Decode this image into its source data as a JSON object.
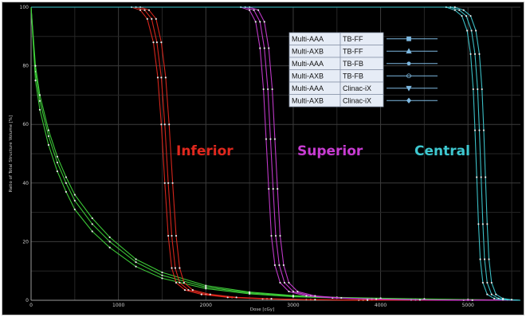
{
  "chart_data": {
    "type": "line",
    "title": "",
    "xlabel": "Dose [cGy]",
    "ylabel": "Ratio of Total Structure Volume [%]",
    "xlim": [
      0,
      5600
    ],
    "ylim": [
      0,
      100
    ],
    "x_ticks": [
      "0",
      "1000",
      "2000",
      "3000",
      "4000",
      "5000"
    ],
    "y_ticks": [
      "0",
      "20",
      "40",
      "60",
      "80",
      "100"
    ],
    "grid": true,
    "regions": [
      {
        "label": "Inferior",
        "color": "#e0281e"
      },
      {
        "label": "Superior",
        "color": "#c83cd2"
      },
      {
        "label": "Central",
        "color": "#3ec8d0"
      }
    ],
    "legend": {
      "placement": "top-right",
      "entries": [
        {
          "algorithm": "Multi-AAA",
          "beam": "TB-FF",
          "marker": "square"
        },
        {
          "algorithm": "Multi-AXB",
          "beam": "TB-FF",
          "marker": "triangle"
        },
        {
          "algorithm": "Multi-AAA",
          "beam": "TB-FB",
          "marker": "dot"
        },
        {
          "algorithm": "Multi-AXB",
          "beam": "TB-FB",
          "marker": "circle"
        },
        {
          "algorithm": "Multi-AAA",
          "beam": "Clinac-iX",
          "marker": "triangle-down"
        },
        {
          "algorithm": "Multi-AXB",
          "beam": "Clinac-iX",
          "marker": "diamond"
        }
      ]
    },
    "curve_groups": [
      {
        "color": "#3fd23a",
        "series": [
          {
            "x": [
              0,
              50,
              100,
              200,
              300,
              400,
              500,
              700,
              900,
              1200,
              1500,
              2000,
              2500,
              3000,
              3500,
              4000,
              4500,
              5000,
              5600
            ],
            "y": [
              100,
              78,
              68,
              56,
              47,
              40,
              34,
              26,
              20,
              13,
              8.5,
              4.5,
              2.5,
              1.4,
              0.9,
              0.6,
              0.4,
              0.2,
              0
            ]
          },
          {
            "x": [
              0,
              50,
              100,
              200,
              300,
              400,
              500,
              700,
              900,
              1200,
              1500,
              2000,
              2500,
              3000,
              3500,
              4000,
              4500,
              5000,
              5600
            ],
            "y": [
              100,
              75,
              65,
              53,
              44,
              37,
              31,
              23.5,
              18,
              11.5,
              7.5,
              4,
              2.2,
              1.2,
              0.8,
              0.5,
              0.3,
              0.15,
              0
            ]
          },
          {
            "x": [
              0,
              50,
              100,
              200,
              300,
              400,
              500,
              700,
              900,
              1200,
              1500,
              2000,
              2500,
              3000,
              3500,
              4000,
              4500,
              5000,
              5600
            ],
            "y": [
              100,
              80,
              70,
              58,
              49,
              42,
              36,
              28,
              21.5,
              14,
              9.5,
              5,
              2.8,
              1.6,
              1,
              0.7,
              0.45,
              0.25,
              0
            ]
          }
        ]
      },
      {
        "color": "#e0281e",
        "series": [
          {
            "x": [
              0,
              1200,
              1300,
              1380,
              1440,
              1490,
              1530,
              1570,
              1610,
              1650,
              1700,
              1800,
              2000,
              2300,
              2700,
              3200,
              3800,
              5600
            ],
            "y": [
              100,
              100,
              99,
              96,
              88,
              76,
              60,
              40,
              22,
              11,
              6,
              3.5,
              2,
              1,
              0.5,
              0.2,
              0.05,
              0
            ]
          },
          {
            "x": [
              0,
              1150,
              1250,
              1330,
              1400,
              1450,
              1490,
              1530,
              1570,
              1610,
              1660,
              1760,
              1950,
              2250,
              2650,
              3150,
              3750,
              5600
            ],
            "y": [
              100,
              100,
              99,
              96,
              88,
              76,
              60,
              40,
              22,
              11,
              6,
              3.5,
              2,
              1,
              0.5,
              0.2,
              0.05,
              0
            ]
          },
          {
            "x": [
              0,
              1250,
              1350,
              1430,
              1490,
              1540,
              1580,
              1620,
              1660,
              1700,
              1750,
              1850,
              2050,
              2350,
              2750,
              3250,
              3850,
              5600
            ],
            "y": [
              100,
              100,
              99,
              96,
              88,
              76,
              60,
              40,
              22,
              11,
              6,
              3.5,
              2,
              1,
              0.5,
              0.2,
              0.05,
              0
            ]
          }
        ]
      },
      {
        "color": "#c83cd2",
        "series": [
          {
            "x": [
              0,
              2450,
              2550,
              2620,
              2670,
              2710,
              2740,
              2770,
              2800,
              2840,
              2900,
              3000,
              3200,
              3500,
              3900,
              4400,
              5000,
              5600
            ],
            "y": [
              100,
              100,
              99,
              95,
              86,
              72,
              55,
              38,
              22,
              12,
              6,
              3,
              1.5,
              0.8,
              0.4,
              0.15,
              0.05,
              0
            ]
          },
          {
            "x": [
              0,
              2400,
              2500,
              2570,
              2620,
              2660,
              2690,
              2720,
              2750,
              2790,
              2850,
              2950,
              3150,
              3450,
              3850,
              4350,
              4950,
              5600
            ],
            "y": [
              100,
              100,
              99,
              95,
              86,
              72,
              55,
              38,
              22,
              12,
              6,
              3,
              1.5,
              0.8,
              0.4,
              0.15,
              0.05,
              0
            ]
          },
          {
            "x": [
              0,
              2500,
              2600,
              2670,
              2720,
              2760,
              2790,
              2820,
              2850,
              2890,
              2950,
              3050,
              3250,
              3550,
              3950,
              4450,
              5050,
              5600
            ],
            "y": [
              100,
              100,
              99,
              95,
              86,
              72,
              55,
              38,
              22,
              12,
              6,
              3,
              1.5,
              0.8,
              0.4,
              0.15,
              0.05,
              0
            ]
          }
        ]
      },
      {
        "color": "#3ec8d0",
        "series": [
          {
            "x": [
              0,
              4800,
              4900,
              4980,
              5040,
              5080,
              5110,
              5130,
              5150,
              5170,
              5190,
              5220,
              5270,
              5350,
              5450,
              5600
            ],
            "y": [
              100,
              100,
              99,
              97,
              92,
              84,
              72,
              58,
              42,
              26,
              14,
              6,
              2,
              0.6,
              0.2,
              0
            ]
          },
          {
            "x": [
              0,
              4750,
              4850,
              4930,
              4990,
              5030,
              5060,
              5080,
              5100,
              5120,
              5140,
              5170,
              5220,
              5300,
              5400,
              5600
            ],
            "y": [
              100,
              100,
              99,
              97,
              92,
              84,
              72,
              58,
              42,
              26,
              14,
              6,
              2,
              0.6,
              0.2,
              0
            ]
          },
          {
            "x": [
              0,
              4850,
              4950,
              5030,
              5090,
              5130,
              5160,
              5180,
              5200,
              5220,
              5240,
              5270,
              5320,
              5400,
              5500,
              5600
            ],
            "y": [
              100,
              100,
              99,
              97,
              92,
              84,
              72,
              58,
              42,
              26,
              14,
              6,
              2,
              0.6,
              0.2,
              0
            ]
          }
        ]
      }
    ]
  }
}
